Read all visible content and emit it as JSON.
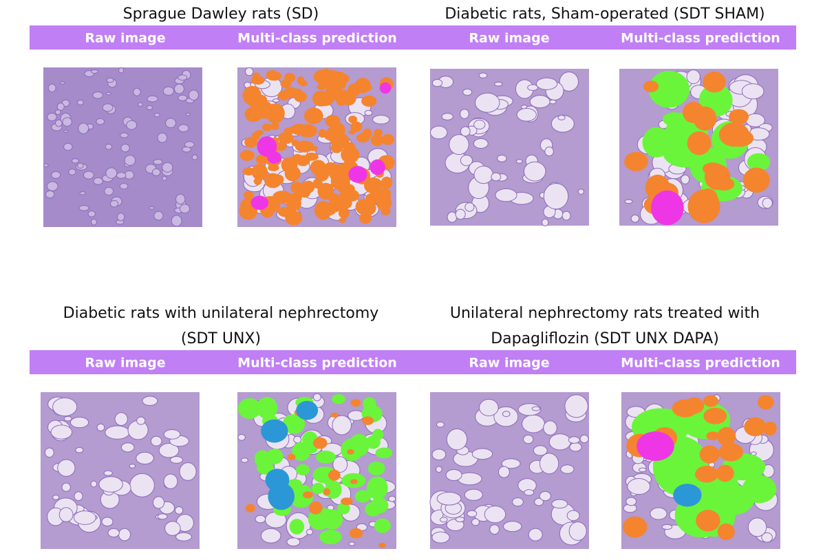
{
  "panels": [
    {
      "title": [
        "Sprague Dawley rats (SD)"
      ],
      "columns": [
        "Raw image",
        "Multi-class prediction"
      ]
    },
    {
      "title": [
        "Diabetic rats, Sham-operated (SDT SHAM)"
      ],
      "columns": [
        "Raw image",
        "Multi-class prediction"
      ]
    },
    {
      "title": [
        "Diabetic rats with unilateral nephrectomy",
        "(SDT UNX)"
      ],
      "columns": [
        "Raw image",
        "Multi-class prediction"
      ]
    },
    {
      "title": [
        "Unilateral nephrectomy rats treated with",
        "Dapagliflozin (SDT UNX DAPA)"
      ],
      "columns": [
        "Raw image",
        "Multi-class prediction"
      ]
    }
  ]
}
